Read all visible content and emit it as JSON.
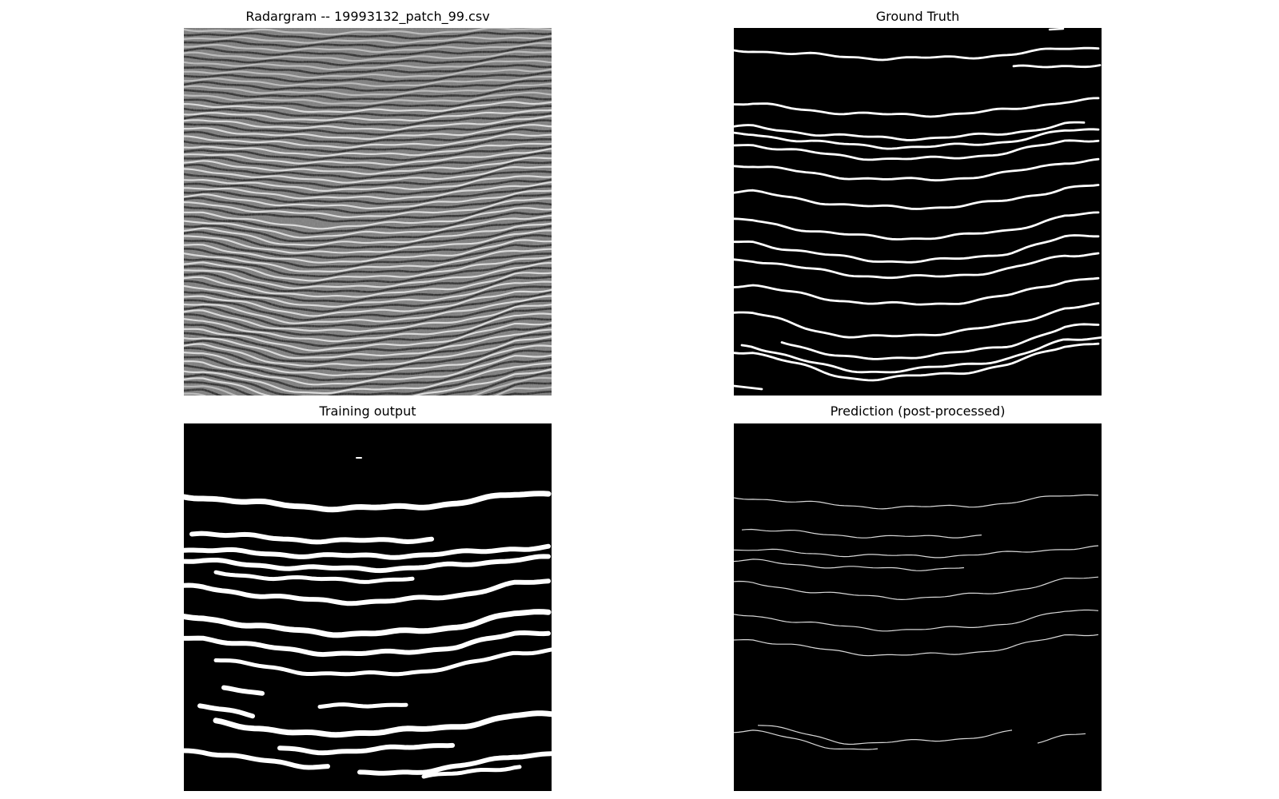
{
  "figure": {
    "panels": [
      {
        "title": "Radargram -- 19993132_patch_99.csv",
        "kind": "radargram",
        "colormap": "grayscale"
      },
      {
        "title": "Ground Truth",
        "kind": "binary-mask",
        "colormap": "black-white"
      },
      {
        "title": "Training output",
        "kind": "binary-mask",
        "colormap": "black-white"
      },
      {
        "title": "Prediction (post-processed)",
        "kind": "thin-lines",
        "colormap": "black-white"
      }
    ]
  }
}
